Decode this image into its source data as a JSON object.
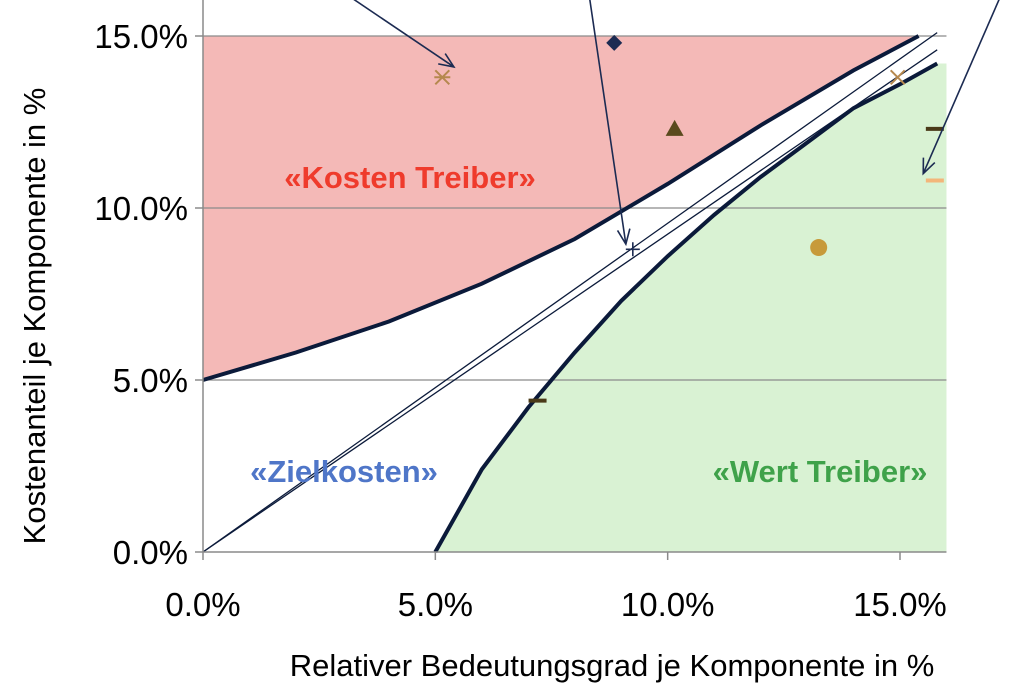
{
  "chart_data": {
    "type": "scatter",
    "title": "",
    "xlabel": "Relativer Bedeutungsgrad je Komponente in %",
    "ylabel": "Kostenanteil je Komponente in %",
    "xlim": [
      0,
      16
    ],
    "ylim": [
      0,
      15.5
    ],
    "x_ticks": [
      0,
      5,
      10,
      15
    ],
    "y_ticks": [
      0,
      5,
      10,
      15
    ],
    "x_tick_labels": [
      "0.0%",
      "5.0%",
      "10.0%",
      "15.0%"
    ],
    "y_tick_labels": [
      "0.0%",
      "5.0%",
      "10.0%",
      "15.0%"
    ],
    "grid": "horizontal",
    "regions": [
      {
        "label": "«Kosten Treiber»",
        "color": "#f4b9b7",
        "text_color": "#ef3b2c"
      },
      {
        "label": "«Zielkosten»",
        "color": "#ffffff",
        "text_color": "#4f76c8"
      },
      {
        "label": "«Wert Treiber»",
        "color": "#d9f2d3",
        "text_color": "#3fa24a"
      }
    ],
    "boundaries": {
      "upper": [
        [
          0,
          5.0
        ],
        [
          2,
          5.8
        ],
        [
          4,
          6.7
        ],
        [
          6,
          7.8
        ],
        [
          8,
          9.1
        ],
        [
          10,
          10.7
        ],
        [
          12,
          12.4
        ],
        [
          14,
          14.0
        ],
        [
          15.4,
          15.0
        ]
      ],
      "lower": [
        [
          5.0,
          0.0
        ],
        [
          6.0,
          2.4
        ],
        [
          7.0,
          4.2
        ],
        [
          8.0,
          5.8
        ],
        [
          9.0,
          7.3
        ],
        [
          10.0,
          8.6
        ],
        [
          11.0,
          9.8
        ],
        [
          12.0,
          10.9
        ],
        [
          13.0,
          11.9
        ],
        [
          14.0,
          12.9
        ],
        [
          15.0,
          13.6
        ],
        [
          15.8,
          14.2
        ]
      ],
      "diagonal_inner": [
        [
          0,
          0
        ],
        [
          15.8,
          14.6
        ]
      ],
      "diagonal_outer": [
        [
          0,
          0
        ],
        [
          15.8,
          15.1
        ]
      ]
    },
    "series": [
      {
        "marker": "diamond",
        "color": "#1c2b52",
        "x": 8.85,
        "y": 14.8
      },
      {
        "marker": "asterisk",
        "color": "#b5884e",
        "x": 5.15,
        "y": 13.8
      },
      {
        "marker": "triangle",
        "color": "#5a4a1e",
        "x": 10.15,
        "y": 12.3
      },
      {
        "marker": "x",
        "color": "#b5884e",
        "x": 14.95,
        "y": 13.8
      },
      {
        "marker": "dash",
        "color": "#4a3a18",
        "x": 15.75,
        "y": 12.3
      },
      {
        "marker": "dash",
        "color": "#f3b67a",
        "x": 15.75,
        "y": 10.8
      },
      {
        "marker": "circle",
        "color": "#c79a3a",
        "x": 13.25,
        "y": 8.85
      },
      {
        "marker": "plus",
        "color": "#1c2b52",
        "x": 9.25,
        "y": 8.8
      },
      {
        "marker": "dash",
        "color": "#4a3a18",
        "x": 7.2,
        "y": 4.4
      }
    ],
    "annotation_arrows": [
      {
        "from": [
          2.0,
          17.2
        ],
        "to": [
          5.4,
          14.1
        ]
      },
      {
        "from": [
          8.2,
          17.2
        ],
        "to": [
          9.1,
          8.95
        ]
      },
      {
        "from": [
          17.5,
          17.2
        ],
        "to": [
          15.5,
          11.0
        ]
      }
    ]
  }
}
